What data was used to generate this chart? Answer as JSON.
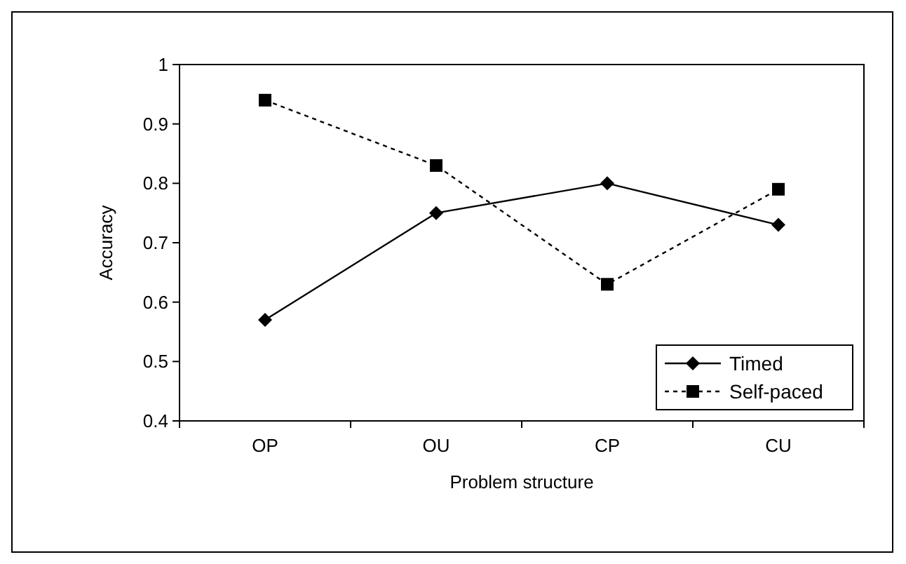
{
  "chart_data": {
    "type": "line",
    "xlabel": "Problem structure",
    "ylabel": "Accuracy",
    "categories": [
      "OP",
      "OU",
      "CP",
      "CU"
    ],
    "series": [
      {
        "name": "Timed",
        "color": "#000000",
        "marker": "diamond",
        "line_style": "solid",
        "values": [
          0.57,
          0.75,
          0.8,
          0.73
        ]
      },
      {
        "name": "Self-paced",
        "color": "#000000",
        "marker": "square",
        "line_style": "dotted",
        "values": [
          0.94,
          0.83,
          0.63,
          0.79
        ]
      }
    ],
    "ylim": [
      0.4,
      1
    ],
    "yticks": [
      0.4,
      0.5,
      0.6,
      0.7,
      0.8,
      0.9,
      1
    ],
    "grid": false,
    "legend": "bottom right"
  }
}
